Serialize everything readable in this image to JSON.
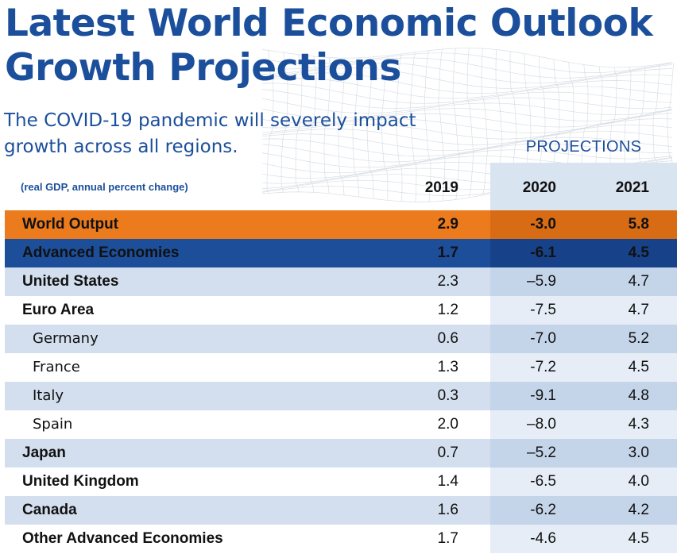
{
  "title_lines": [
    "Latest World Economic Outlook",
    "Growth Projections"
  ],
  "subtitle_lines": [
    "The COVID-19 pandemic will severely impact",
    "growth across all regions."
  ],
  "projections_label": "PROJECTIONS",
  "unit_note": "(real GDP, annual percent change)",
  "colors": {
    "title": "#1b4f9c",
    "world_output_row": "#ec7b1d",
    "advanced_economies_row": "#1c4e9a",
    "shaded_row": "#d3dfee",
    "projection_column": "#d9e4f1"
  },
  "chart_data": {
    "type": "table",
    "columns": [
      "2019",
      "2020",
      "2021"
    ],
    "rows": [
      {
        "name": "World Output",
        "values": [
          "2.9",
          "-3.0",
          "5.8"
        ]
      },
      {
        "name": "Advanced Economies",
        "values": [
          "1.7",
          "-6.1",
          "4.5"
        ]
      },
      {
        "name": "United States",
        "values": [
          "2.3",
          "–5.9",
          "4.7"
        ]
      },
      {
        "name": "Euro Area",
        "values": [
          "1.2",
          "-7.5",
          "4.7"
        ]
      },
      {
        "name": "Germany",
        "values": [
          "0.6",
          "-7.0",
          "5.2"
        ]
      },
      {
        "name": "France",
        "values": [
          "1.3",
          "-7.2",
          "4.5"
        ]
      },
      {
        "name": "Italy",
        "values": [
          "0.3",
          "-9.1",
          "4.8"
        ]
      },
      {
        "name": "Spain",
        "values": [
          "2.0",
          "–8.0",
          "4.3"
        ]
      },
      {
        "name": "Japan",
        "values": [
          "0.7",
          "–5.2",
          "3.0"
        ]
      },
      {
        "name": "United Kingdom",
        "values": [
          "1.4",
          "-6.5",
          "4.0"
        ]
      },
      {
        "name": "Canada",
        "values": [
          "1.6",
          "-6.2",
          "4.2"
        ]
      },
      {
        "name": "Other Advanced Economies",
        "values": [
          "1.7",
          "-4.6",
          "4.5"
        ]
      }
    ]
  }
}
